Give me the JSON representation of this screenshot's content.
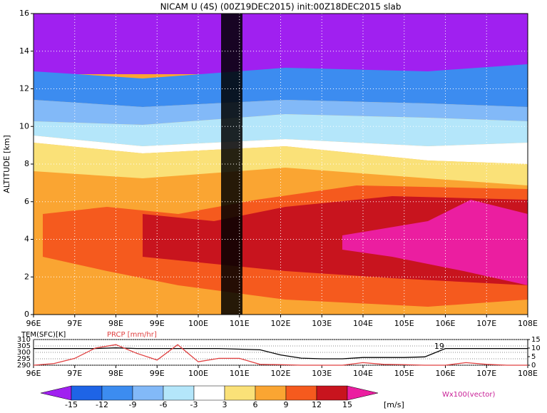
{
  "chart_data": [
    {
      "type": "contour",
      "title": "NICAM U (4S) (00Z19DEC2015) init:00Z18DEC2015 slab",
      "ylabel": "ALTITUDE [km]",
      "xlim": [
        96,
        108
      ],
      "xticks": [
        {
          "value": 96,
          "label": "96E"
        },
        {
          "value": 97,
          "label": "97E"
        },
        {
          "value": 98,
          "label": "98E"
        },
        {
          "value": 99,
          "label": "99E"
        },
        {
          "value": 100,
          "label": "100E"
        },
        {
          "value": 101,
          "label": "101E"
        },
        {
          "value": 102,
          "label": "102E"
        },
        {
          "value": 103,
          "label": "103E"
        },
        {
          "value": 104,
          "label": "104E"
        },
        {
          "value": 105,
          "label": "105E"
        },
        {
          "value": 106,
          "label": "106E"
        },
        {
          "value": 107,
          "label": "107E"
        },
        {
          "value": 108,
          "label": "108E"
        }
      ],
      "ylim": [
        0,
        16
      ],
      "yticks": [
        0,
        2,
        4,
        6,
        8,
        10,
        12,
        14,
        16
      ],
      "grid": true
    },
    {
      "type": "line",
      "x": [
        96,
        96.5,
        97,
        97.5,
        98,
        98.5,
        99,
        99.5,
        100,
        100.5,
        101,
        101.5,
        102,
        102.5,
        103,
        103.5,
        104,
        104.5,
        105,
        105.5,
        106,
        106.5,
        107,
        107.5,
        108
      ],
      "series": [
        {
          "name": "TEM(SFC)[K]",
          "color": "#000000",
          "values": [
            303,
            303,
            303,
            303,
            303.5,
            303,
            303,
            303,
            303,
            303,
            302.5,
            302,
            298,
            295.5,
            295,
            295,
            296,
            296,
            296,
            296.5,
            303,
            303,
            303,
            303,
            303
          ]
        },
        {
          "name": "PRCP [mm/hr]",
          "color": "#e04040",
          "axis": "y2",
          "values": [
            0,
            1,
            4,
            10,
            12,
            7,
            3,
            12,
            2,
            4,
            4,
            0.5,
            0.3,
            0,
            0,
            0,
            1.5,
            0.5,
            0.3,
            0,
            0,
            1.5,
            0.5,
            0,
            0
          ]
        }
      ],
      "annotation": "19",
      "xlim": [
        96,
        108
      ],
      "xticks": [
        {
          "value": 96,
          "label": "96E"
        },
        {
          "value": 97,
          "label": "97E"
        },
        {
          "value": 98,
          "label": "98E"
        },
        {
          "value": 99,
          "label": "99E"
        },
        {
          "value": 100,
          "label": "100E"
        },
        {
          "value": 101,
          "label": "101E"
        },
        {
          "value": 102,
          "label": "102E"
        },
        {
          "value": 103,
          "label": "103E"
        },
        {
          "value": 104,
          "label": "104E"
        },
        {
          "value": 105,
          "label": "105E"
        },
        {
          "value": 106,
          "label": "106E"
        },
        {
          "value": 107,
          "label": "107E"
        },
        {
          "value": 108,
          "label": "108E"
        }
      ],
      "ylim": [
        290,
        310
      ],
      "yticks": [
        290,
        295,
        300,
        305,
        310
      ],
      "y2lim": [
        0,
        15
      ],
      "y2ticks": [
        0,
        5,
        10,
        15
      ]
    },
    {
      "type": "colorbar",
      "levels": [
        -15,
        -12,
        -9,
        -6,
        -3,
        3,
        6,
        9,
        12,
        15
      ],
      "colors": [
        "#a020f0",
        "#1e64e6",
        "#3c8cf0",
        "#82b9f8",
        "#b4e6fa",
        "#ffffff",
        "#fae178",
        "#faa532",
        "#f55a1e",
        "#c8141e",
        "#eb1ea0"
      ],
      "unit": "[m/s]",
      "note": "Wx100(vector)"
    }
  ]
}
